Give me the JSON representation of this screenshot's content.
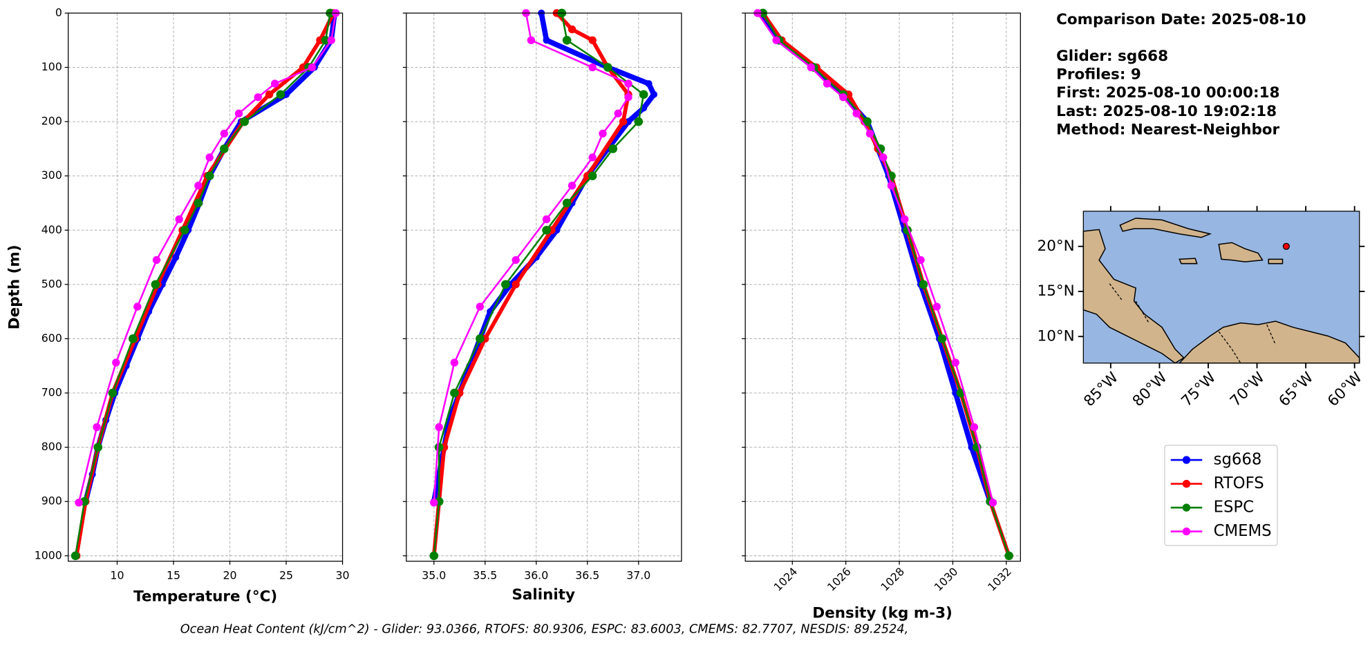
{
  "chart_data": [
    {
      "type": "line",
      "xlabel": "Temperature (°C)",
      "ylabel": "Depth (m)",
      "xlim": [
        5.66,
        30
      ],
      "xticks": [
        10,
        15,
        20,
        25,
        30
      ],
      "ylim": [
        0,
        1010
      ],
      "y_inverted": true,
      "yticks": [
        0,
        100,
        200,
        300,
        400,
        500,
        600,
        700,
        800,
        900,
        1000
      ],
      "grid": true,
      "series": [
        {
          "name": "sg668",
          "color": "#0000ff",
          "depth": [
            0,
            50,
            100,
            150,
            200,
            250,
            300,
            350,
            400,
            450,
            500,
            550,
            600,
            650,
            700,
            750,
            800,
            850,
            900
          ],
          "values": [
            29.3,
            29,
            27.5,
            25,
            21,
            19.5,
            18.2,
            17.3,
            16.3,
            15.2,
            14,
            12.8,
            11.8,
            10.8,
            9.8,
            9,
            8.3,
            7.8,
            7.2
          ]
        },
        {
          "name": "RTOFS",
          "color": "#ff0000",
          "depth": [
            0,
            50,
            100,
            150,
            200,
            300,
            400,
            500,
            600,
            700,
            800,
            900,
            1000
          ],
          "values": [
            29.2,
            28,
            26.5,
            23.5,
            21.2,
            18,
            15.8,
            13.6,
            11.6,
            9.6,
            8.3,
            7.2,
            6.4
          ]
        },
        {
          "name": "ESPC",
          "color": "#008000",
          "depth": [
            0,
            50,
            100,
            150,
            200,
            250,
            300,
            350,
            400,
            500,
            600,
            700,
            800,
            900,
            1000
          ],
          "values": [
            28.9,
            28.5,
            27,
            24.5,
            21.3,
            19.5,
            18.2,
            17.2,
            16,
            13.4,
            11.4,
            9.6,
            8.3,
            7.1,
            6.3
          ]
        },
        {
          "name": "CMEMS",
          "color": "#ff00ff",
          "depth": [
            0,
            50,
            100,
            130,
            155,
            185,
            222,
            266,
            318,
            380,
            455,
            541,
            644,
            763,
            902
          ],
          "values": [
            29.4,
            29,
            27.3,
            24,
            22.5,
            20.8,
            19.5,
            18.2,
            17.2,
            15.5,
            13.5,
            11.8,
            9.9,
            8.2,
            6.6
          ]
        }
      ]
    },
    {
      "type": "line",
      "xlabel": "Salinity",
      "xlim": [
        34.73,
        37.42
      ],
      "xticks": [
        {
          "value": 35,
          "label": "35.0"
        },
        35.5,
        {
          "value": 36,
          "label": "36.0"
        },
        36.5,
        {
          "value": 37,
          "label": "37.0"
        }
      ],
      "grid": true,
      "series": [
        {
          "name": "sg668",
          "color": "#0000ff",
          "depth": [
            0,
            50,
            100,
            130,
            150,
            175,
            200,
            250,
            300,
            350,
            400,
            450,
            500,
            550,
            600,
            650,
            700,
            750,
            800,
            850,
            900
          ],
          "values": [
            36.05,
            36.1,
            36.7,
            37.1,
            37.15,
            37.05,
            36.9,
            36.7,
            36.5,
            36.35,
            36.2,
            36,
            35.75,
            35.55,
            35.45,
            35.35,
            35.25,
            35.15,
            35.1,
            35.05,
            35
          ]
        },
        {
          "name": "RTOFS",
          "color": "#ff0000",
          "depth": [
            0,
            30,
            50,
            100,
            150,
            200,
            300,
            400,
            500,
            600,
            700,
            800,
            900,
            1000
          ],
          "values": [
            36.2,
            36.35,
            36.55,
            36.7,
            36.9,
            36.85,
            36.5,
            36.15,
            35.8,
            35.5,
            35.25,
            35.1,
            35.05,
            35
          ]
        },
        {
          "name": "ESPC",
          "color": "#008000",
          "depth": [
            0,
            50,
            100,
            150,
            200,
            250,
            300,
            350,
            400,
            500,
            600,
            700,
            800,
            900,
            1000
          ],
          "values": [
            36.25,
            36.3,
            36.7,
            37.05,
            37,
            36.75,
            36.55,
            36.3,
            36.1,
            35.7,
            35.45,
            35.2,
            35.05,
            35.05,
            35
          ]
        },
        {
          "name": "CMEMS",
          "color": "#ff00ff",
          "depth": [
            0,
            50,
            100,
            130,
            155,
            185,
            222,
            266,
            318,
            380,
            455,
            541,
            644,
            763,
            902
          ],
          "values": [
            35.9,
            35.95,
            36.55,
            36.9,
            36.9,
            36.8,
            36.65,
            36.55,
            36.35,
            36.1,
            35.8,
            35.45,
            35.2,
            35.05,
            35
          ]
        }
      ]
    },
    {
      "type": "line",
      "xlabel": "Density (kg m-3)",
      "xlim": [
        1022.24,
        1032.53
      ],
      "xticks": [
        1024,
        1026,
        1028,
        1030,
        1032
      ],
      "xtick_rotation": 45,
      "grid": true,
      "series": [
        {
          "name": "sg668",
          "color": "#0000ff",
          "depth": [
            0,
            50,
            100,
            150,
            200,
            300,
            400,
            500,
            600,
            700,
            800,
            900
          ],
          "values": [
            1022.8,
            1023.5,
            1024.8,
            1025.9,
            1026.8,
            1027.6,
            1028.2,
            1028.8,
            1029.5,
            1030.1,
            1030.7,
            1031.4
          ]
        },
        {
          "name": "RTOFS",
          "color": "#ff0000",
          "depth": [
            0,
            50,
            100,
            150,
            200,
            250,
            300,
            400,
            500,
            600,
            700,
            800,
            900,
            1000
          ],
          "values": [
            1022.9,
            1023.6,
            1024.9,
            1026.1,
            1026.7,
            1027.2,
            1027.7,
            1028.3,
            1028.9,
            1029.6,
            1030.3,
            1030.9,
            1031.4,
            1032.1
          ]
        },
        {
          "name": "ESPC",
          "color": "#008000",
          "depth": [
            0,
            50,
            100,
            150,
            200,
            250,
            300,
            400,
            500,
            600,
            700,
            800,
            900,
            1000
          ],
          "values": [
            1022.9,
            1023.5,
            1024.8,
            1025.9,
            1026.8,
            1027.3,
            1027.7,
            1028.3,
            1028.9,
            1029.6,
            1030.3,
            1030.9,
            1031.4,
            1032.1
          ]
        },
        {
          "name": "CMEMS",
          "color": "#ff00ff",
          "depth": [
            0,
            50,
            100,
            130,
            155,
            185,
            222,
            266,
            318,
            380,
            455,
            541,
            644,
            763,
            902
          ],
          "values": [
            1022.7,
            1023.4,
            1024.7,
            1025.3,
            1025.9,
            1026.4,
            1026.9,
            1027.4,
            1027.7,
            1028.2,
            1028.8,
            1029.4,
            1030.1,
            1030.8,
            1031.5
          ]
        }
      ]
    },
    {
      "type": "map",
      "xlim": [
        -87.8,
        -59.5
      ],
      "ylim": [
        7.05,
        23.9
      ],
      "xticks": [
        {
          "value": -85,
          "label": "85°W"
        },
        {
          "value": -80,
          "label": "80°W"
        },
        {
          "value": -75,
          "label": "75°W"
        },
        {
          "value": -70,
          "label": "70°W"
        },
        {
          "value": -65,
          "label": "65°W"
        },
        {
          "value": -60,
          "label": "60°W"
        }
      ],
      "yticks": [
        {
          "value": 10,
          "label": "10°N"
        },
        {
          "value": 15,
          "label": "15°N"
        },
        {
          "value": 20,
          "label": "20°N"
        }
      ],
      "xtick_rotation": 45,
      "point": {
        "lon": -67,
        "lat": 20,
        "color": "#ff0000"
      }
    }
  ],
  "info_box": [
    "Comparison Date: 2025-08-10",
    "Glider: sg668",
    "Profiles: 9",
    "First: 2025-08-10 00:00:18",
    "Last: 2025-08-10 19:02:18",
    "Method: Nearest-Neighbor"
  ],
  "footer": "Ocean Heat Content (kJ/cm^2) - Glider: 93.0366,  RTOFS: 80.9306,  ESPC: 83.6003,  CMEMS: 82.7707,  NESDIS: 89.2524,"
}
